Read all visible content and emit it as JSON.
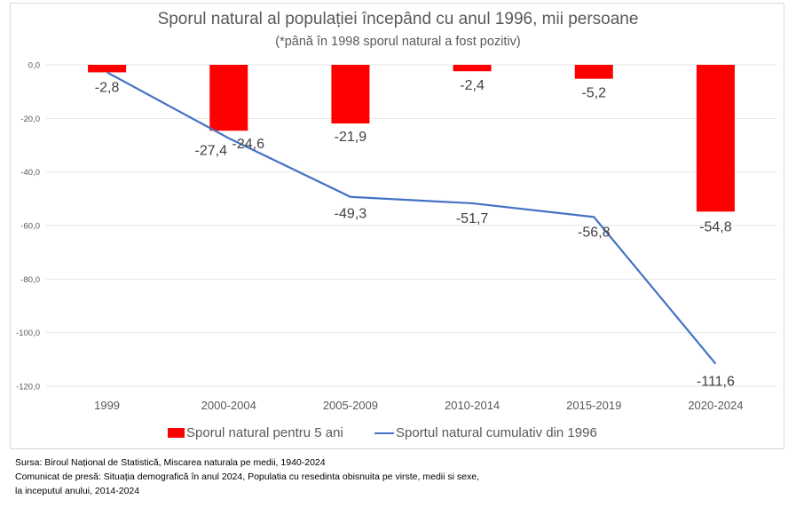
{
  "chart_data": {
    "type": "bar+line",
    "title": "Sporul natural al populației începând cu anul 1996, mii persoane",
    "subtitle": "(*până în 1998 sporul natural a fost pozitiv)",
    "xlabel": "",
    "ylabel": "",
    "categories": [
      "1999",
      "2000-2004",
      "2005-2009",
      "2010-2014",
      "2015-2019",
      "2020-2024"
    ],
    "series": [
      {
        "name": "Sporul natural pentru 5 ani",
        "kind": "bar",
        "color": "#FF0000",
        "values": [
          -2.8,
          -24.6,
          -21.9,
          -2.4,
          -5.2,
          -54.8
        ],
        "labels": [
          "-2,8",
          "-24,6",
          "-21,9",
          "-2,4",
          "-5,2",
          "-54,8"
        ]
      },
      {
        "name": "Sportul natural cumulativ din 1996",
        "kind": "line",
        "color": "#4472C4",
        "values": [
          -2.8,
          -27.4,
          -49.3,
          -51.7,
          -56.8,
          -111.6
        ],
        "labels": [
          "",
          "-27,4",
          "-49,3",
          "-51,7",
          "-56,8",
          "-111,6"
        ]
      }
    ],
    "ylim": [
      -120,
      0
    ],
    "yticks": [
      0,
      -20,
      -40,
      -60,
      -80,
      -100,
      -120
    ],
    "ytick_labels": [
      "0,0",
      "-20,0",
      "-40,0",
      "-60,0",
      "-80,0",
      "-100,0",
      "-120,0"
    ],
    "grid": true,
    "legend": "bottom"
  },
  "source": {
    "lines": [
      "Sursa: Biroul Național de Statistică, Miscarea naturala pe medii, 1940-2024",
      "Comunicat de presă: Situația demografică în anul 2024,  Populatia cu resedinta obisnuita pe virste, medii si sexe,",
      "la inceputul anului, 2014-2024"
    ]
  }
}
